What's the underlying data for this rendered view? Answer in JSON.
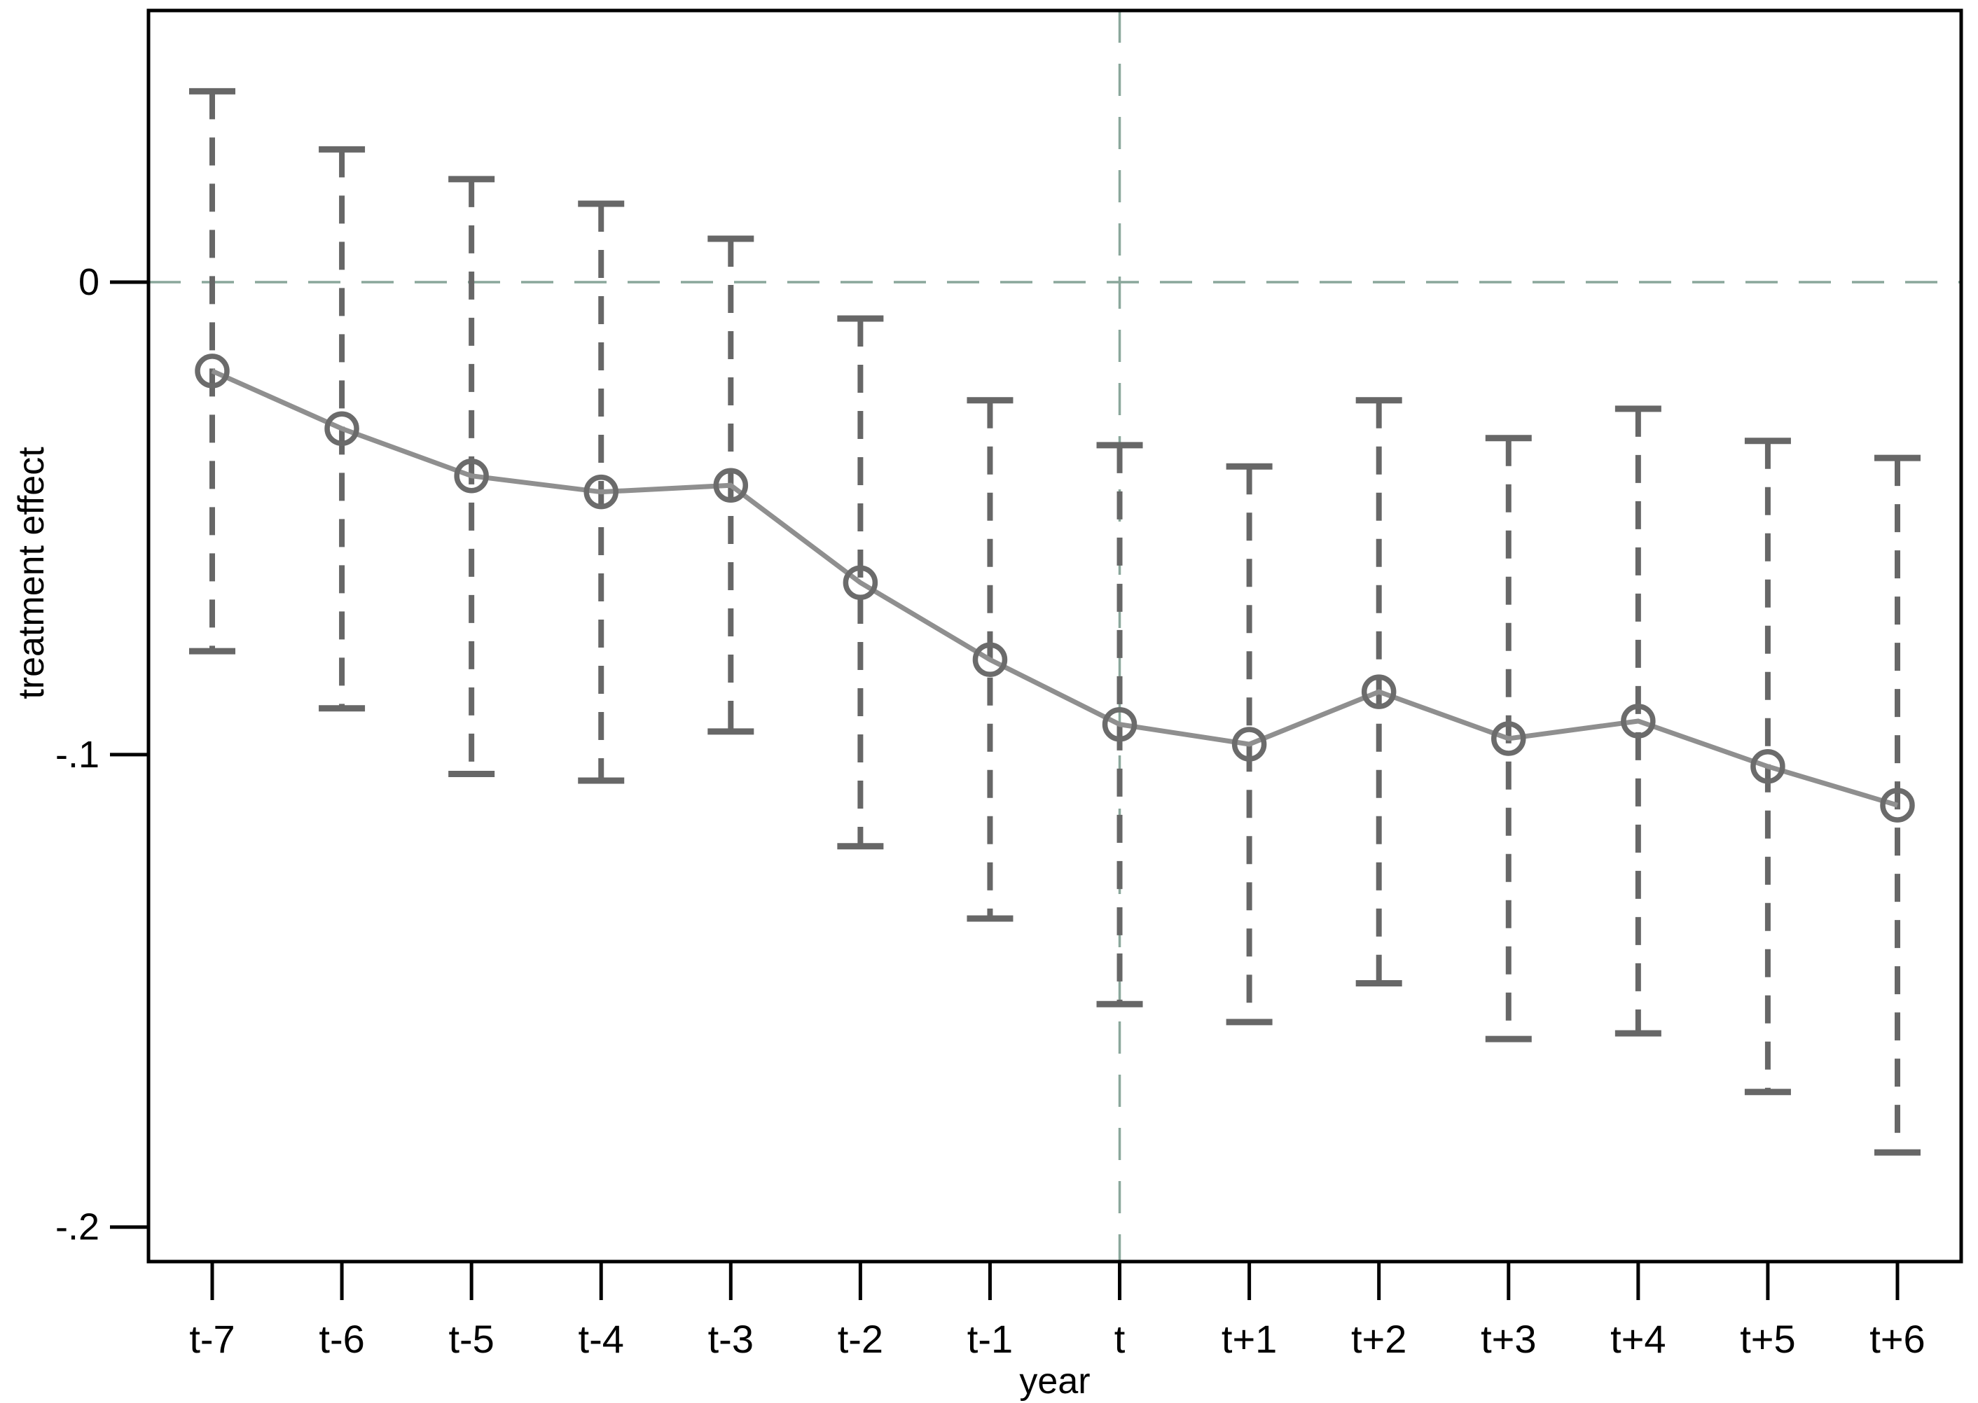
{
  "chart_data": {
    "type": "line",
    "title": "",
    "xlabel": "year",
    "ylabel": "treatment effect",
    "categories": [
      "t-7",
      "t-6",
      "t-5",
      "t-4",
      "t-3",
      "t-2",
      "t-1",
      "t",
      "t+1",
      "t+2",
      "t+3",
      "t+4",
      "t+5",
      "t+6"
    ],
    "series": [
      {
        "name": "treatment effect point estimate",
        "values": [
          -0.0188,
          -0.031,
          -0.041,
          -0.0444,
          -0.043,
          -0.0636,
          -0.0799,
          -0.0936,
          -0.0978,
          -0.0867,
          -0.0966,
          -0.0929,
          -0.1025,
          -0.1107
        ]
      }
    ],
    "ci_upper": [
      0.0404,
      0.0281,
      0.0218,
      0.0166,
      0.0092,
      -0.0077,
      -0.025,
      -0.0345,
      -0.039,
      -0.025,
      -0.033,
      -0.0268,
      -0.0336,
      -0.0372
    ],
    "ci_lower": [
      -0.0781,
      -0.0902,
      -0.1041,
      -0.1055,
      -0.0951,
      -0.1194,
      -0.1347,
      -0.1528,
      -0.1566,
      -0.1484,
      -0.1602,
      -0.159,
      -0.1714,
      -0.1842
    ],
    "yticks": {
      "values": [
        0,
        -0.1,
        -0.2
      ],
      "labels": [
        "0",
        "-.1",
        "-.2"
      ]
    },
    "ylim": [
      -0.2073,
      0.0575
    ],
    "grid": "off",
    "legend": "none",
    "reference_lines": {
      "horizontal_at": 0,
      "vertical_at_category": "t"
    },
    "colors": {
      "marker": "#6b6b6b",
      "connect_line": "#8f8f8f",
      "whisker": "#676767",
      "reference": "#8aa79b",
      "axis": "#000000",
      "background": "#ffffff"
    },
    "marker_style": "open-circle",
    "whisker_style": "dashed-with-caps"
  }
}
